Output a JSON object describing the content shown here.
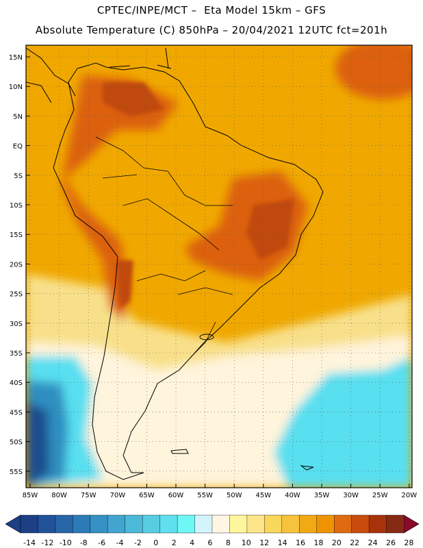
{
  "header": {
    "line1": "CPTEC/INPE/MCT –  Eta Model 15km – GFS",
    "line2": "Absolute Temperature (C) 850hPa – 20/04/2021 12UTC fct=201h"
  },
  "map": {
    "lat_labels": [
      "15N",
      "10N",
      "5N",
      "EQ",
      "5S",
      "10S",
      "15S",
      "20S",
      "25S",
      "30S",
      "35S",
      "40S",
      "45S",
      "50S",
      "55S"
    ],
    "lon_labels": [
      "85W",
      "80W",
      "75W",
      "70W",
      "65W",
      "60W",
      "55W",
      "50W",
      "45W",
      "40W",
      "35W",
      "30W",
      "25W",
      "20W"
    ],
    "colors": {
      "ocean_warm": "#f0a800",
      "land_warm": "#f4a80a",
      "hot": "#dc6010",
      "very_hot": "#c04a0a",
      "mild": "#f8e08a",
      "cool": "#fff4dc",
      "cold": "#58dff0",
      "very_cold": "#2d8fc0",
      "coldest": "#1d4e8e"
    }
  },
  "colorbar": {
    "labels": [
      "-14",
      "-12",
      "-10",
      "-8",
      "-6",
      "-4",
      "-2",
      "0",
      "2",
      "4",
      "6",
      "8",
      "10",
      "12",
      "14",
      "16",
      "18",
      "20",
      "22",
      "24",
      "26",
      "28"
    ],
    "colors": [
      "#1c3f86",
      "#20529a",
      "#2666a8",
      "#2c7bb6",
      "#3590c4",
      "#41a5d0",
      "#4cb9d8",
      "#58cde2",
      "#5ee0ee",
      "#6df8f6",
      "#d2f4fa",
      "#fff6e4",
      "#fef69c",
      "#fde68a",
      "#f9d65c",
      "#f7c23c",
      "#f1aa14",
      "#ef9400",
      "#e06a10",
      "#c84c0c",
      "#a8320c",
      "#862a14"
    ],
    "low_arrow_color": "#1c3f86",
    "high_arrow_color": "#8a0a2a"
  }
}
